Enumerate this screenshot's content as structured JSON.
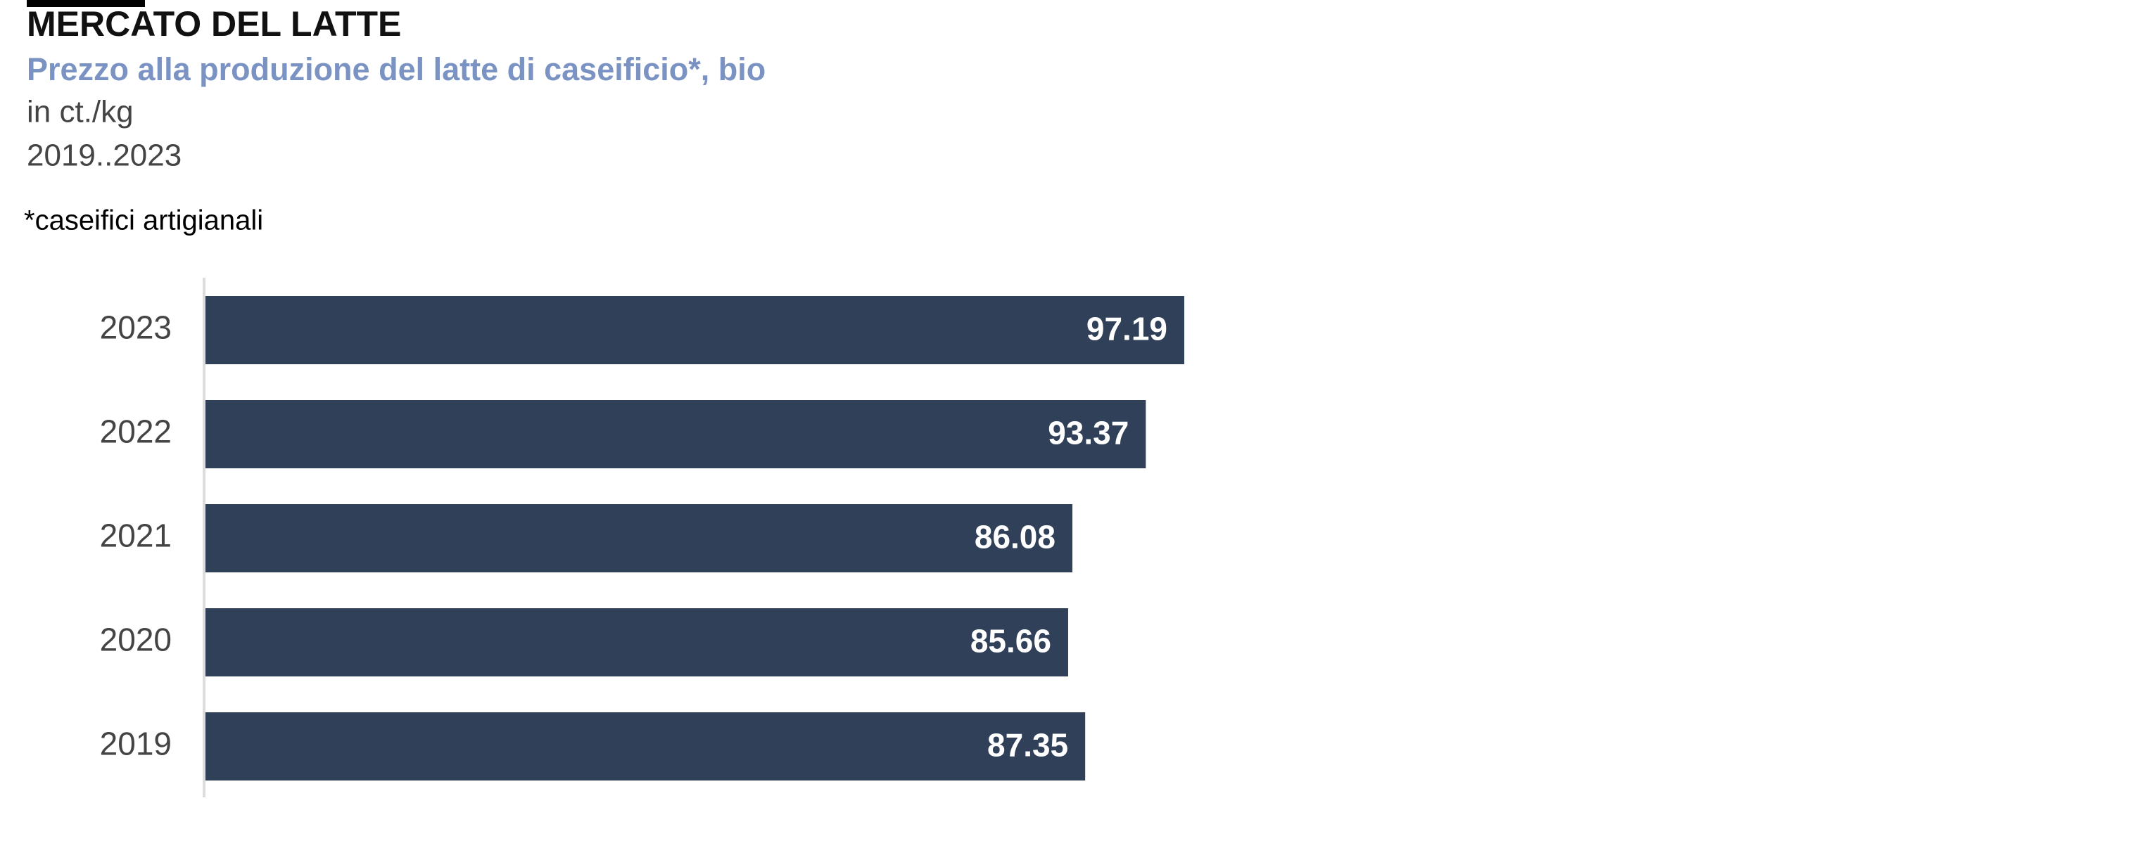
{
  "chart_data": {
    "type": "bar",
    "orientation": "horizontal",
    "title": "MERCATO DEL LATTE",
    "subtitle": "Prezzo alla produzione del latte di caseificio*, bio",
    "unit": "in ct./kg",
    "period": "2019..2023",
    "note": "*caseifici artigianali",
    "categories": [
      "2023",
      "2022",
      "2021",
      "2020",
      "2019"
    ],
    "values": [
      97.19,
      93.37,
      86.08,
      85.66,
      87.35
    ],
    "color": "#314059"
  }
}
